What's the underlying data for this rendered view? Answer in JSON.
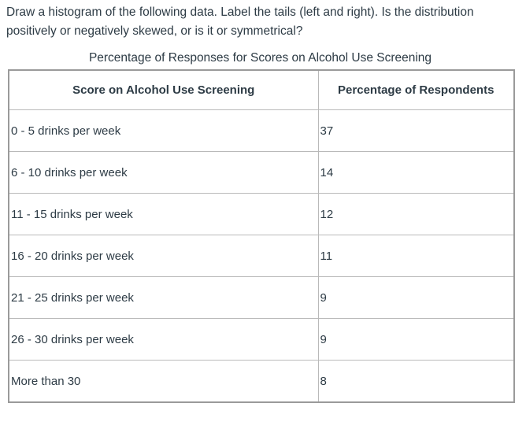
{
  "question": {
    "line1": "Draw a histogram of the following data. Label the tails (left and right). Is the distribution",
    "line2": "positively or negatively skewed, or is it or symmetrical?"
  },
  "table": {
    "caption": "Percentage of Responses for Scores on Alcohol Use Screening",
    "headers": [
      "Score on Alcohol Use Screening",
      "Percentage of Respondents"
    ],
    "rows": [
      {
        "score": "0 - 5 drinks per week",
        "percent": "37"
      },
      {
        "score": "6 - 10 drinks per week",
        "percent": "14"
      },
      {
        "score": "11 - 15 drinks per week",
        "percent": "12"
      },
      {
        "score": "16 - 20 drinks per week",
        "percent": "11"
      },
      {
        "score": "21 - 25 drinks per week",
        "percent": "9"
      },
      {
        "score": "26 - 30 drinks per week",
        "percent": "9"
      },
      {
        "score": "More than 30",
        "percent": "8"
      }
    ]
  }
}
